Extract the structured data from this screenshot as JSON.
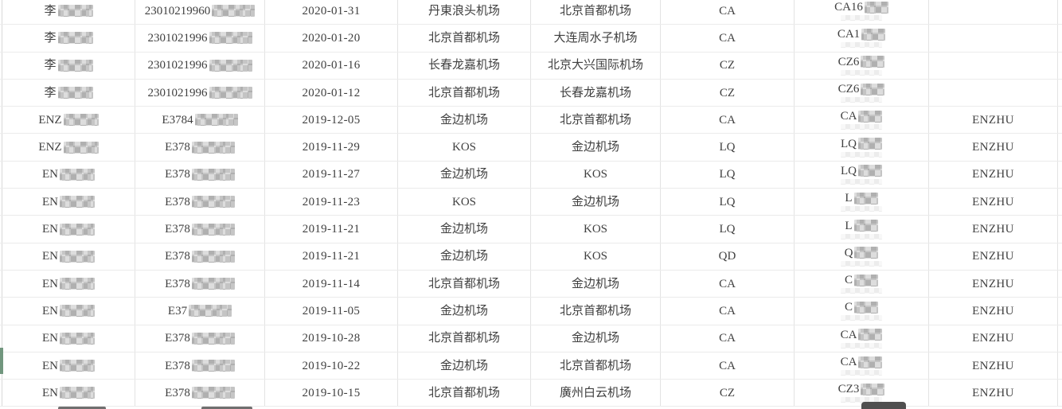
{
  "table": {
    "rows": [
      {
        "name_prefix": "李",
        "id_prefix": "23010219960",
        "date": "2020-01-31",
        "from": "丹東浪头机场",
        "to": "北京首都机场",
        "airline": "CA",
        "flight_prefix": "CA16",
        "remark": ""
      },
      {
        "name_prefix": "李",
        "id_prefix": "2301021996",
        "date": "2020-01-20",
        "from": "北京首都机场",
        "to": "大连周水子机场",
        "airline": "CA",
        "flight_prefix": "CA1",
        "remark": ""
      },
      {
        "name_prefix": "李",
        "id_prefix": "2301021996",
        "date": "2020-01-16",
        "from": "长春龙嘉机场",
        "to": "北京大兴国际机场",
        "airline": "CZ",
        "flight_prefix": "CZ6",
        "remark": ""
      },
      {
        "name_prefix": "李",
        "id_prefix": "2301021996",
        "date": "2020-01-12",
        "from": "北京首都机场",
        "to": "长春龙嘉机场",
        "airline": "CZ",
        "flight_prefix": "CZ6",
        "remark": ""
      },
      {
        "name_prefix": "ENZ",
        "id_prefix": "E3784",
        "date": "2019-12-05",
        "from": "金边机场",
        "to": "北京首都机场",
        "airline": "CA",
        "flight_prefix": "CA",
        "remark": "ENZHU"
      },
      {
        "name_prefix": "ENZ",
        "id_prefix": "E378",
        "date": "2019-11-29",
        "from": "KOS",
        "to": "金边机场",
        "airline": "LQ",
        "flight_prefix": "LQ",
        "remark": "ENZHU"
      },
      {
        "name_prefix": "EN",
        "id_prefix": "E378",
        "date": "2019-11-27",
        "from": "金边机场",
        "to": "KOS",
        "airline": "LQ",
        "flight_prefix": "LQ",
        "remark": "ENZHU"
      },
      {
        "name_prefix": "EN",
        "id_prefix": "E378",
        "date": "2019-11-23",
        "from": "KOS",
        "to": "金边机场",
        "airline": "LQ",
        "flight_prefix": "L",
        "remark": "ENZHU"
      },
      {
        "name_prefix": "EN",
        "id_prefix": "E378",
        "date": "2019-11-21",
        "from": "金边机场",
        "to": "KOS",
        "airline": "LQ",
        "flight_prefix": "L",
        "remark": "ENZHU"
      },
      {
        "name_prefix": "EN",
        "id_prefix": "E378",
        "date": "2019-11-21",
        "from": "金边机场",
        "to": "KOS",
        "airline": "QD",
        "flight_prefix": "Q",
        "remark": "ENZHU"
      },
      {
        "name_prefix": "EN",
        "id_prefix": "E378",
        "date": "2019-11-14",
        "from": "北京首都机场",
        "to": "金边机场",
        "airline": "CA",
        "flight_prefix": "C",
        "remark": "ENZHU"
      },
      {
        "name_prefix": "EN",
        "id_prefix": "E37",
        "date": "2019-11-05",
        "from": "金边机场",
        "to": "北京首都机场",
        "airline": "CA",
        "flight_prefix": "C",
        "remark": "ENZHU"
      },
      {
        "name_prefix": "EN",
        "id_prefix": "E378",
        "date": "2019-10-28",
        "from": "北京首都机场",
        "to": "金边机场",
        "airline": "CA",
        "flight_prefix": "CA",
        "remark": "ENZHU"
      },
      {
        "name_prefix": "EN",
        "id_prefix": "E378",
        "date": "2019-10-22",
        "from": "金边机场",
        "to": "北京首都机场",
        "airline": "CA",
        "flight_prefix": "CA",
        "remark": "ENZHU"
      },
      {
        "name_prefix": "EN",
        "id_prefix": "E378",
        "date": "2019-10-15",
        "from": "北京首都机场",
        "to": "廣州白云机场",
        "airline": "CZ",
        "flight_prefix": "CZ3",
        "remark": "ENZHU"
      }
    ],
    "redaction": "pixelated-mosaic"
  },
  "marker": {
    "row": 14
  },
  "partial_next_row": {
    "columns": [
      "passenger_name",
      "id_number",
      "flight_number"
    ]
  },
  "colors": {
    "background": "#ffffff",
    "grid_line": "#e3e3e3",
    "row_line": "#ebebeb",
    "left_edge_line": "#d9d9d9",
    "text": "#404040",
    "row_marker_green": "#71967e",
    "mosaic_dark": "#cfcfcf",
    "mosaic_light": "#e9e9e9",
    "partial_blob_dark": "#4f4f4f"
  }
}
